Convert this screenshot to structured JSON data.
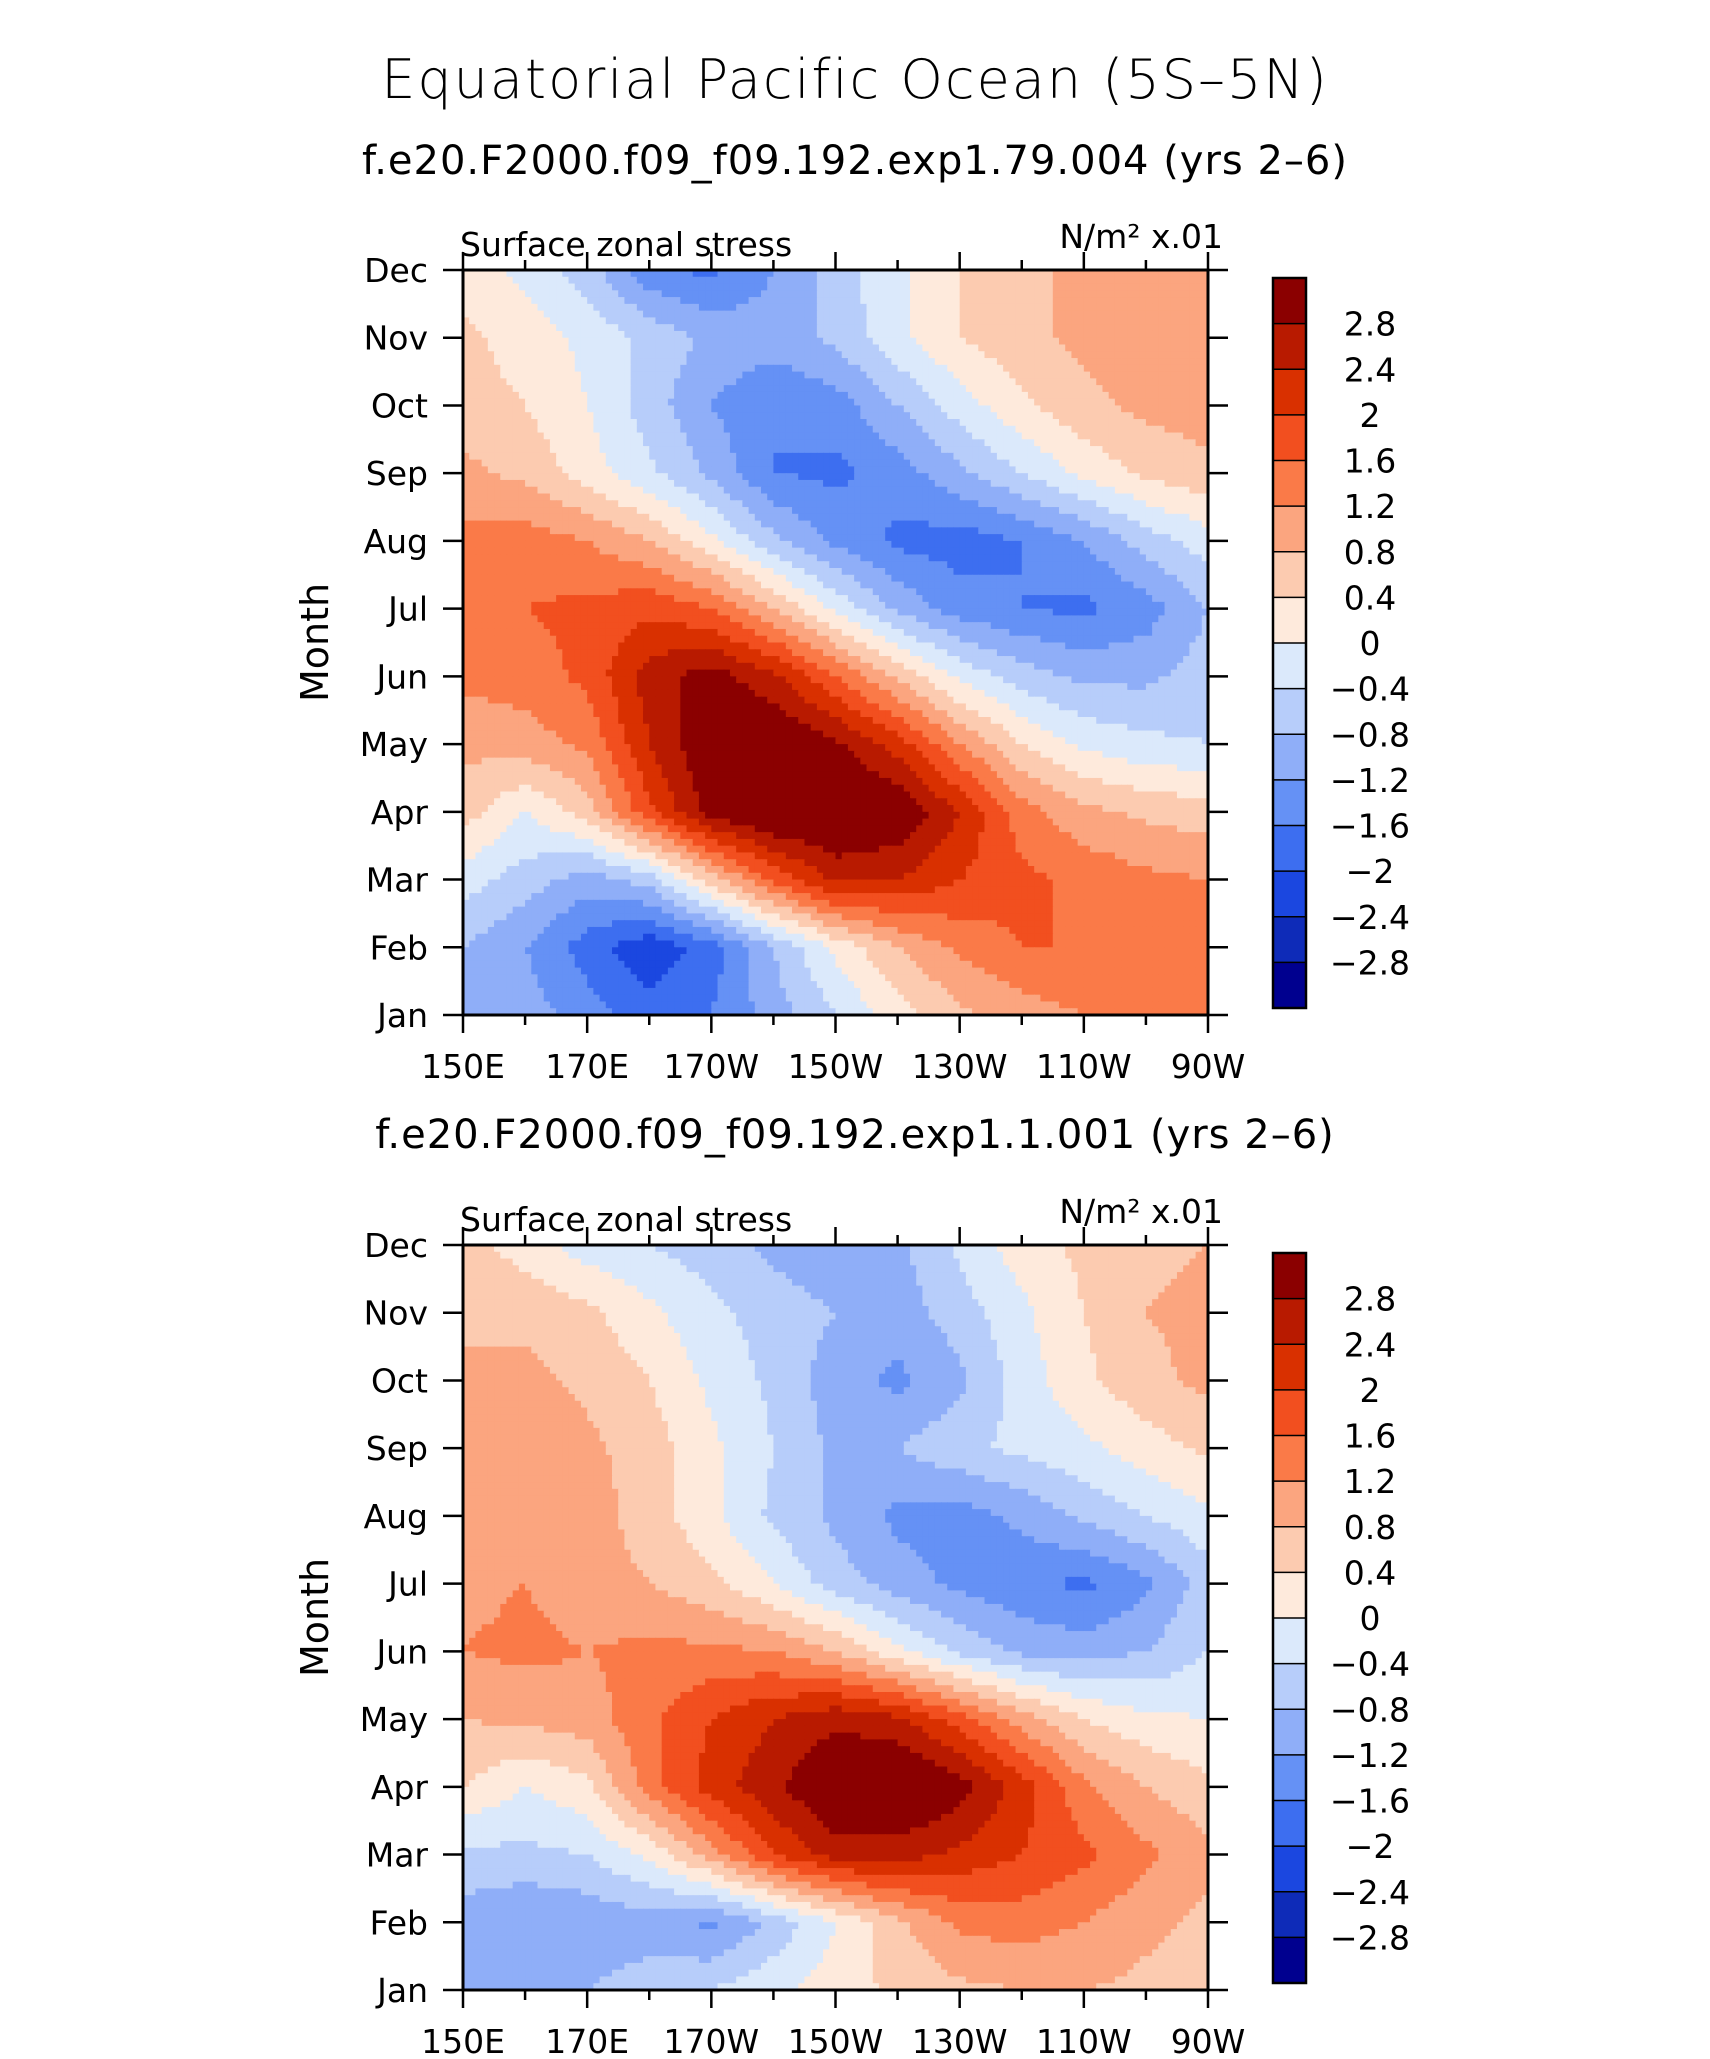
{
  "figure_title": "Equatorial Pacific Ocean (5S–5N)",
  "chart_data": [
    {
      "type": "heatmap",
      "title": "f.e20.F2000.f09_f09.192.exp1.79.004 (yrs 2–6)",
      "left_label": "Surface zonal stress",
      "right_label": "N/m² x.01",
      "xlabel": "",
      "ylabel": "Month",
      "x_tick_labels": [
        "150E",
        "170E",
        "170W",
        "150W",
        "130W",
        "110W",
        "90W"
      ],
      "y_tick_labels": [
        "Jan",
        "Feb",
        "Mar",
        "Apr",
        "May",
        "Jun",
        "Jul",
        "Aug",
        "Sep",
        "Oct",
        "Nov",
        "Dec"
      ],
      "colorbar_labels": [
        "2.8",
        "2.4",
        "2",
        "1.6",
        "1.2",
        "0.8",
        "0.4",
        "0",
        "−0.4",
        "−0.8",
        "−1.2",
        "−1.6",
        "−2",
        "−2.4",
        "−2.8"
      ],
      "colorbar_colors": [
        "#8b0000",
        "#b81a00",
        "#d93000",
        "#f24f1f",
        "#fa7a48",
        "#fba57f",
        "#fccbb0",
        "#feeadc",
        "#dbe9fb",
        "#b7cdfa",
        "#8faef8",
        "#6591f5",
        "#3d6ef0",
        "#1b47e0",
        "#0e2bb8",
        "#00008f"
      ],
      "zlim": [
        -2.8,
        2.8
      ],
      "xlim_deg_east": [
        150,
        270
      ],
      "months": [
        "Jan",
        "Feb",
        "Mar",
        "Apr",
        "May",
        "Jun",
        "Jul",
        "Aug",
        "Sep",
        "Oct",
        "Nov",
        "Dec"
      ],
      "grid_lon_deg_east": [
        150,
        160,
        170,
        180,
        190,
        200,
        210,
        220,
        230,
        240,
        250,
        260,
        270
      ],
      "values": [
        [
          -1.2,
          -1.4,
          -1.8,
          -2.2,
          -2.0,
          -1.4,
          -0.8,
          -0.2,
          0.3,
          0.6,
          0.8,
          0.9,
          0.9
        ],
        [
          -1.2,
          -1.6,
          -2.2,
          -2.7,
          -2.2,
          -1.2,
          -0.3,
          0.4,
          0.9,
          1.2,
          1.2,
          1.0,
          0.9
        ],
        [
          -0.6,
          -1.0,
          -1.4,
          -1.0,
          0.2,
          1.3,
          2.1,
          2.0,
          1.6,
          1.3,
          1.1,
          0.9,
          0.8
        ],
        [
          0.2,
          -0.4,
          0.2,
          1.5,
          2.6,
          3.0,
          3.0,
          2.8,
          2.0,
          1.0,
          0.5,
          0.3,
          0.2
        ],
        [
          0.5,
          0.6,
          0.9,
          2.0,
          2.8,
          2.9,
          2.5,
          1.8,
          0.8,
          0.0,
          -0.5,
          -0.7,
          -0.8
        ],
        [
          0.9,
          1.0,
          1.3,
          2.2,
          2.6,
          2.1,
          1.2,
          0.3,
          -0.5,
          -1.0,
          -1.3,
          -1.3,
          -1.0
        ],
        [
          1.0,
          1.2,
          1.3,
          1.5,
          1.2,
          0.4,
          -0.5,
          -1.3,
          -1.8,
          -2.0,
          -2.1,
          -1.8,
          -1.2
        ],
        [
          0.9,
          1.0,
          0.8,
          0.4,
          -0.3,
          -1.1,
          -1.7,
          -2.1,
          -2.2,
          -2.0,
          -1.6,
          -1.0,
          -0.6
        ],
        [
          0.5,
          0.3,
          -0.2,
          -0.7,
          -1.3,
          -2.0,
          -2.1,
          -1.8,
          -1.3,
          -0.8,
          -0.3,
          0.1,
          0.3
        ],
        [
          0.2,
          0.0,
          -0.4,
          -1.0,
          -1.6,
          -2.0,
          -1.8,
          -1.2,
          -0.6,
          -0.1,
          0.3,
          0.5,
          0.6
        ],
        [
          0.1,
          -0.2,
          -0.5,
          -0.9,
          -1.3,
          -1.4,
          -1.1,
          -0.5,
          0.0,
          0.3,
          0.5,
          0.6,
          0.6
        ],
        [
          -0.2,
          -0.5,
          -1.0,
          -1.9,
          -2.1,
          -1.6,
          -1.0,
          -0.5,
          0.0,
          0.3,
          0.5,
          0.6,
          0.6
        ]
      ]
    },
    {
      "type": "heatmap",
      "title": "f.e20.F2000.f09_f09.192.exp1.1.001 (yrs 2–6)",
      "left_label": "Surface zonal stress",
      "right_label": "N/m² x.01",
      "xlabel": "",
      "ylabel": "Month",
      "x_tick_labels": [
        "150E",
        "170E",
        "170W",
        "150W",
        "130W",
        "110W",
        "90W"
      ],
      "y_tick_labels": [
        "Jan",
        "Feb",
        "Mar",
        "Apr",
        "May",
        "Jun",
        "Jul",
        "Aug",
        "Sep",
        "Oct",
        "Nov",
        "Dec"
      ],
      "colorbar_labels": [
        "2.8",
        "2.4",
        "2",
        "1.6",
        "1.2",
        "0.8",
        "0.4",
        "0",
        "−0.4",
        "−0.8",
        "−1.2",
        "−1.6",
        "−2",
        "−2.4",
        "−2.8"
      ],
      "colorbar_colors": [
        "#8b0000",
        "#b81a00",
        "#d93000",
        "#f24f1f",
        "#fa7a48",
        "#fba57f",
        "#fccbb0",
        "#feeadc",
        "#dbe9fb",
        "#b7cdfa",
        "#8faef8",
        "#6591f5",
        "#3d6ef0",
        "#1b47e0",
        "#0e2bb8",
        "#00008f"
      ],
      "zlim": [
        -2.8,
        2.8
      ],
      "xlim_deg_east": [
        150,
        270
      ],
      "months": [
        "Jan",
        "Feb",
        "Mar",
        "Apr",
        "May",
        "Jun",
        "Jul",
        "Aug",
        "Sep",
        "Oct",
        "Nov",
        "Dec"
      ],
      "grid_lon_deg_east": [
        150,
        160,
        170,
        180,
        190,
        200,
        210,
        220,
        230,
        240,
        250,
        260,
        270
      ],
      "values": [
        [
          -1.3,
          -1.4,
          -1.2,
          -1.0,
          -0.8,
          -0.5,
          -0.2,
          0.1,
          0.3,
          0.4,
          0.4,
          0.3,
          0.2
        ],
        [
          -1.4,
          -1.6,
          -1.5,
          -1.4,
          -1.7,
          -1.1,
          -0.4,
          0.3,
          0.9,
          1.0,
          0.8,
          0.5,
          0.3
        ],
        [
          -0.9,
          -0.9,
          -0.8,
          -0.3,
          0.6,
          1.6,
          2.2,
          2.2,
          1.9,
          1.6,
          1.3,
          0.9,
          0.5
        ],
        [
          0.0,
          -0.4,
          -0.1,
          1.0,
          1.8,
          2.3,
          2.9,
          3.0,
          2.6,
          1.8,
          0.9,
          0.4,
          0.1
        ],
        [
          0.4,
          0.5,
          0.6,
          1.1,
          1.6,
          2.0,
          2.3,
          2.1,
          1.4,
          0.6,
          0.0,
          -0.3,
          -0.4
        ],
        [
          0.8,
          0.9,
          0.8,
          0.9,
          0.9,
          0.8,
          0.4,
          -0.3,
          -0.9,
          -1.3,
          -1.4,
          -1.2,
          -0.8
        ],
        [
          0.7,
          0.8,
          0.6,
          0.4,
          0.1,
          -0.4,
          -1.0,
          -1.4,
          -1.7,
          -1.9,
          -2.1,
          -1.7,
          -1.0
        ],
        [
          0.7,
          0.7,
          0.6,
          0.2,
          -0.3,
          -0.9,
          -1.3,
          -1.7,
          -1.8,
          -1.5,
          -1.1,
          -0.8,
          -0.5
        ],
        [
          0.7,
          0.7,
          0.5,
          0.2,
          -0.3,
          -0.8,
          -1.3,
          -1.2,
          -0.9,
          -0.7,
          -0.5,
          -0.2,
          0.1
        ],
        [
          0.5,
          0.5,
          0.3,
          0.0,
          -0.5,
          -0.9,
          -1.4,
          -1.7,
          -1.3,
          -0.6,
          -0.1,
          0.3,
          0.5
        ],
        [
          0.3,
          0.3,
          0.1,
          -0.3,
          -0.7,
          -1.0,
          -1.2,
          -1.4,
          -1.0,
          -0.5,
          0.0,
          0.4,
          0.5
        ],
        [
          0.2,
          -0.2,
          -0.6,
          -0.8,
          -1.0,
          -1.3,
          -1.5,
          -1.3,
          -0.7,
          -0.2,
          0.1,
          0.3,
          0.4
        ]
      ]
    }
  ]
}
